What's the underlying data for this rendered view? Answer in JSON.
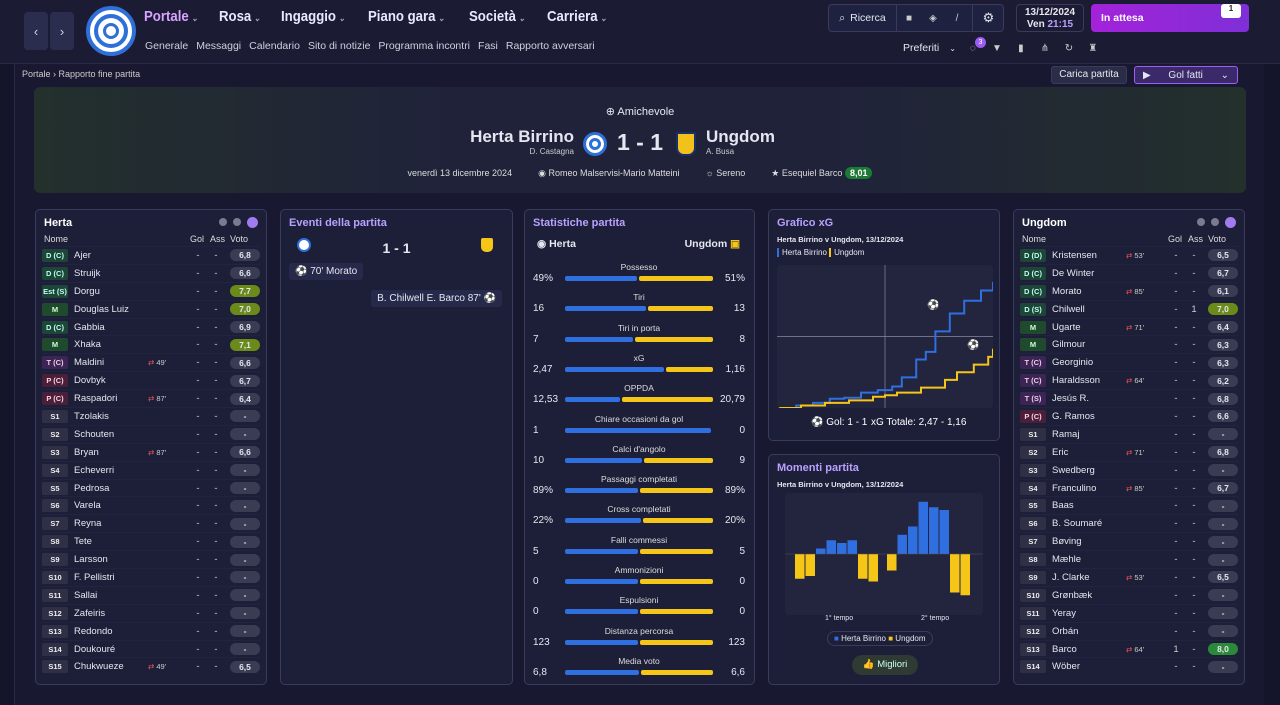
{
  "nav": {
    "main": [
      {
        "label": "Portale"
      },
      {
        "label": "Rosa"
      },
      {
        "label": "Ingaggio"
      },
      {
        "label": "Piano gara"
      },
      {
        "label": "Società"
      },
      {
        "label": "Carriera"
      }
    ],
    "sub": [
      "Generale",
      "Messaggi",
      "Calendario",
      "Sito di notizie",
      "Programma incontri",
      "Fasi",
      "Rapporto avversari"
    ],
    "search": "Ricerca",
    "date": "13/12/2024",
    "time_day": "Ven",
    "time": "21:15",
    "status": "In attesa",
    "status_badge": "1",
    "favorites": "Preferiti",
    "fav_badge": "3"
  },
  "breadcrumb": {
    "root": "Portale",
    "current": "Rapporto fine partita"
  },
  "actions": {
    "load": "Carica partita",
    "goals": "Gol fatti"
  },
  "match": {
    "competition": "Amichevole",
    "home": "Herta Birrino",
    "home_coach": "D. Castagna",
    "away": "Ungdom",
    "away_coach": "A. Busa",
    "score": "1 - 1",
    "date": "venerdì 13 dicembre 2024",
    "stadium": "Romeo Malservisi-Mario Matteini",
    "weather": "Sereno",
    "motm": "Esequiel Barco",
    "motm_rating": "8,01"
  },
  "home_panel": {
    "title": "Herta",
    "cols": [
      "Nome",
      "Gol",
      "Ass",
      "Voto"
    ],
    "players": [
      [
        "D (C)",
        "Ajer",
        "",
        "-",
        "-",
        "6,8",
        ""
      ],
      [
        "D (C)",
        "Struijk",
        "",
        "-",
        "-",
        "6,6",
        ""
      ],
      [
        "Est (S)",
        "Dorgu",
        "",
        "-",
        "-",
        "7,7",
        "y"
      ],
      [
        "M",
        "Douglas Luiz",
        "",
        "-",
        "-",
        "7,0",
        "y"
      ],
      [
        "D (C)",
        "Gabbia",
        "",
        "-",
        "-",
        "6,9",
        ""
      ],
      [
        "M",
        "Xhaka",
        "",
        "-",
        "-",
        "7,1",
        "y"
      ],
      [
        "T (C)",
        "Maldini",
        "49'",
        "-",
        "-",
        "6,6",
        ""
      ],
      [
        "P (C)",
        "Dovbyk",
        "",
        "-",
        "-",
        "6,7",
        ""
      ],
      [
        "P (C)",
        "Raspadori",
        "87'",
        "-",
        "-",
        "6,4",
        ""
      ],
      [
        "S1",
        "Tzolakis",
        "",
        "-",
        "-",
        "-",
        ""
      ],
      [
        "S2",
        "Schouten",
        "",
        "-",
        "-",
        "-",
        ""
      ],
      [
        "S3",
        "Bryan",
        "87'",
        "-",
        "-",
        "6,6",
        ""
      ],
      [
        "S4",
        "Echeverri",
        "",
        "-",
        "-",
        "-",
        ""
      ],
      [
        "S5",
        "Pedrosa",
        "",
        "-",
        "-",
        "-",
        ""
      ],
      [
        "S6",
        "Varela",
        "",
        "-",
        "-",
        "-",
        ""
      ],
      [
        "S7",
        "Reyna",
        "",
        "-",
        "-",
        "-",
        ""
      ],
      [
        "S8",
        "Tete",
        "",
        "-",
        "-",
        "-",
        ""
      ],
      [
        "S9",
        "Larsson",
        "",
        "-",
        "-",
        "-",
        ""
      ],
      [
        "S10",
        "F. Pellistri",
        "",
        "-",
        "-",
        "-",
        ""
      ],
      [
        "S11",
        "Sallai",
        "",
        "-",
        "-",
        "-",
        ""
      ],
      [
        "S12",
        "Zafeiris",
        "",
        "-",
        "-",
        "-",
        ""
      ],
      [
        "S13",
        "Redondo",
        "",
        "-",
        "-",
        "-",
        ""
      ],
      [
        "S14",
        "Doukouré",
        "",
        "-",
        "-",
        "-",
        ""
      ],
      [
        "S15",
        "Chukwueze",
        "49'",
        "-",
        "-",
        "6,5",
        ""
      ]
    ]
  },
  "away_panel": {
    "title": "Ungdom",
    "cols": [
      "Nome",
      "Gol",
      "Ass",
      "Voto"
    ],
    "players": [
      [
        "D (D)",
        "Kristensen",
        "53'",
        "-",
        "-",
        "6,5",
        ""
      ],
      [
        "D (C)",
        "De Winter",
        "",
        "-",
        "-",
        "6,7",
        ""
      ],
      [
        "D (C)",
        "Morato",
        "85'",
        "-",
        "-",
        "6,1",
        ""
      ],
      [
        "D (S)",
        "Chilwell",
        "",
        "-",
        "1",
        "7,0",
        "y"
      ],
      [
        "M",
        "Ugarte",
        "71'",
        "-",
        "-",
        "6,4",
        ""
      ],
      [
        "M",
        "Gilmour",
        "",
        "-",
        "-",
        "6,3",
        ""
      ],
      [
        "T (C)",
        "Georginio",
        "",
        "-",
        "-",
        "6,3",
        ""
      ],
      [
        "T (C)",
        "Haraldsson",
        "64'",
        "-",
        "-",
        "6,2",
        ""
      ],
      [
        "T (S)",
        "Jesús R.",
        "",
        "-",
        "-",
        "6,8",
        ""
      ],
      [
        "P (C)",
        "G. Ramos",
        "",
        "-",
        "-",
        "6,6",
        ""
      ],
      [
        "S1",
        "Ramaj",
        "",
        "-",
        "-",
        "-",
        ""
      ],
      [
        "S2",
        "Eric",
        "71'",
        "-",
        "-",
        "6,8",
        ""
      ],
      [
        "S3",
        "Swedberg",
        "",
        "-",
        "-",
        "-",
        ""
      ],
      [
        "S4",
        "Franculino",
        "85'",
        "-",
        "-",
        "6,7",
        ""
      ],
      [
        "S5",
        "Baas",
        "",
        "-",
        "-",
        "-",
        ""
      ],
      [
        "S6",
        "B. Soumaré",
        "",
        "-",
        "-",
        "-",
        ""
      ],
      [
        "S7",
        "Bøving",
        "",
        "-",
        "-",
        "-",
        ""
      ],
      [
        "S8",
        "Mæhle",
        "",
        "-",
        "-",
        "-",
        ""
      ],
      [
        "S9",
        "J. Clarke",
        "53'",
        "-",
        "-",
        "6,5",
        ""
      ],
      [
        "S10",
        "Grønbæk",
        "",
        "-",
        "-",
        "-",
        ""
      ],
      [
        "S11",
        "Yeray",
        "",
        "-",
        "-",
        "-",
        ""
      ],
      [
        "S12",
        "Orbán",
        "",
        "-",
        "-",
        "-",
        ""
      ],
      [
        "S13",
        "Barco",
        "64'",
        "1",
        "-",
        "8,0",
        "gg"
      ],
      [
        "S14",
        "Wöber",
        "",
        "-",
        "-",
        "-",
        ""
      ]
    ]
  },
  "events": {
    "title": "Eventi della partita",
    "score": "1 - 1",
    "items": [
      {
        "text": "70' Morato"
      },
      {
        "text": "B. Chilwell E. Barco 87'"
      }
    ]
  },
  "stats": {
    "title": "Statistiche partita",
    "home": "Herta",
    "away": "Ungdom",
    "rows": [
      [
        "Possesso",
        "49%",
        "51%",
        49,
        51
      ],
      [
        "Tiri",
        "16",
        "13",
        16,
        13
      ],
      [
        "Tiri in porta",
        "7",
        "8",
        7,
        8
      ],
      [
        "xG",
        "2,47",
        "1,16",
        2.47,
        1.16
      ],
      [
        "OPPDA",
        "12,53",
        "20,79",
        12.53,
        20.79
      ],
      [
        "Chiare occasioni da gol",
        "1",
        "0",
        1,
        0
      ],
      [
        "Calci d'angolo",
        "10",
        "9",
        10,
        9
      ],
      [
        "Passaggi completati",
        "89%",
        "89%",
        89,
        89
      ],
      [
        "Cross completati",
        "22%",
        "20%",
        22,
        20
      ],
      [
        "Falli commessi",
        "5",
        "5",
        5,
        5
      ],
      [
        "Ammonizioni",
        "0",
        "0",
        0,
        0
      ],
      [
        "Espulsioni",
        "0",
        "0",
        0,
        0
      ],
      [
        "Distanza percorsa",
        "123",
        "123",
        123,
        123
      ],
      [
        "Media voto",
        "6,8",
        "6,6",
        6.8,
        6.6
      ]
    ]
  },
  "xg": {
    "title": "Grafico xG",
    "subtitle": "Herta Birrino v Ungdom, 13/12/2024",
    "legend": [
      "Herta Birrino",
      "Ungdom"
    ],
    "goals": "Gol: 1 - 1",
    "total": "xG Totale: 2,47 - 1,16"
  },
  "chart_data": {
    "type": "line",
    "series": [
      {
        "name": "Herta Birrino",
        "color": "#2f6fe0",
        "values": [
          [
            0,
            0
          ],
          [
            8,
            0.05
          ],
          [
            15,
            0.1
          ],
          [
            22,
            0.18
          ],
          [
            28,
            0.2
          ],
          [
            35,
            0.3
          ],
          [
            42,
            0.35
          ],
          [
            48,
            0.42
          ],
          [
            52,
            0.6
          ],
          [
            58,
            0.95
          ],
          [
            62,
            1.1
          ],
          [
            66,
            1.5
          ],
          [
            72,
            1.85
          ],
          [
            78,
            2.1
          ],
          [
            85,
            2.3
          ],
          [
            90,
            2.47
          ]
        ]
      },
      {
        "name": "Ungdom",
        "color": "#f5c518",
        "values": [
          [
            0,
            0
          ],
          [
            10,
            0.05
          ],
          [
            20,
            0.1
          ],
          [
            30,
            0.15
          ],
          [
            40,
            0.22
          ],
          [
            45,
            0.25
          ],
          [
            50,
            0.3
          ],
          [
            60,
            0.4
          ],
          [
            70,
            0.55
          ],
          [
            75,
            0.7
          ],
          [
            82,
            0.85
          ],
          [
            88,
            1.0
          ],
          [
            90,
            1.16
          ]
        ]
      }
    ]
  },
  "momenti": {
    "title": "Momenti partita",
    "subtitle": "Herta Birrino v Ungdom, 13/12/2024",
    "h1": "1° tempo",
    "h2": "2° tempo",
    "legend": [
      "Herta Birrino",
      "Ungdom"
    ],
    "button": "Migliori",
    "bars": [
      -0.45,
      -0.4,
      0.1,
      0.25,
      0.2,
      0.25,
      -0.45,
      -0.5,
      -0.3,
      0.35,
      0.5,
      0.95,
      0.85,
      0.8,
      -0.7,
      -0.75
    ]
  }
}
